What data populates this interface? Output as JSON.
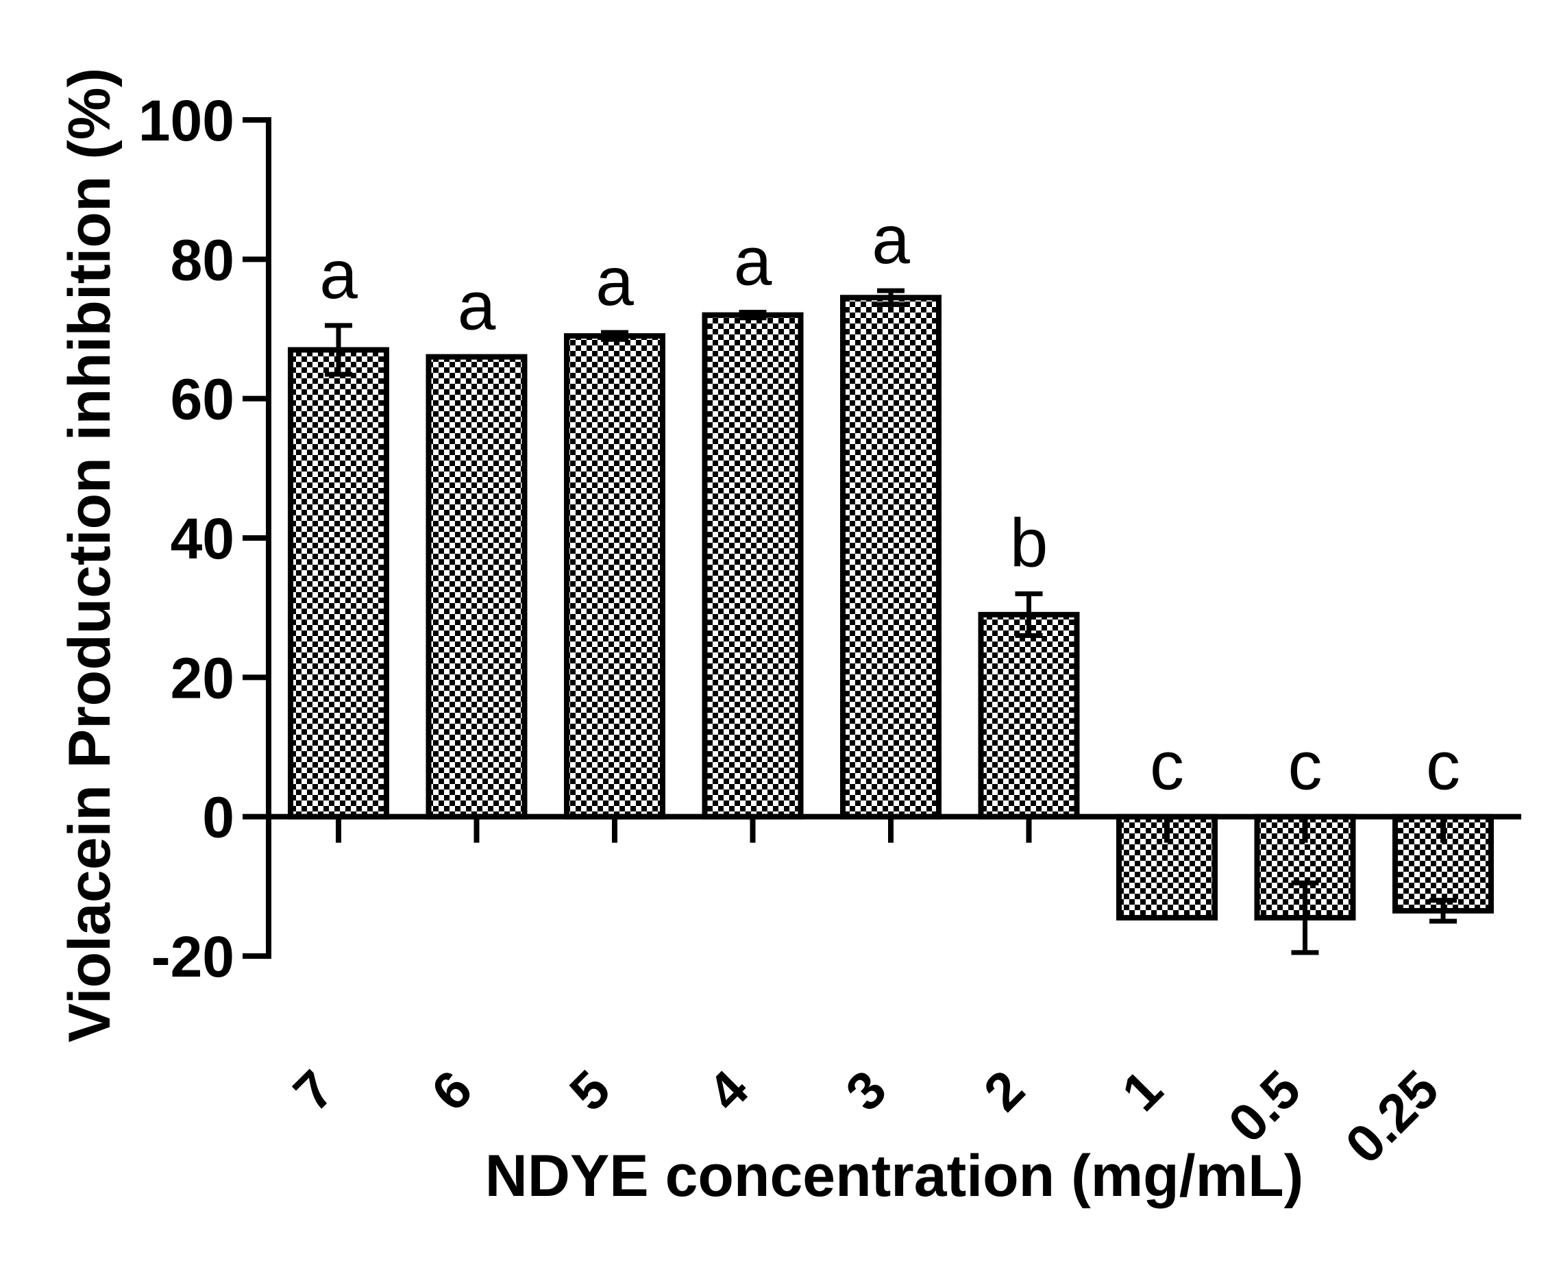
{
  "chart_data": {
    "type": "bar",
    "xlabel": "NDYE concentration (mg/mL)",
    "ylabel": "Violacein Production inhibition (%)",
    "ylim": [
      -20,
      100
    ],
    "yticks": [
      -20,
      0,
      20,
      40,
      60,
      80,
      100
    ],
    "grid": false,
    "legend": "none",
    "categories": [
      "7",
      "6",
      "5",
      "4",
      "3",
      "2",
      "1",
      "0.5",
      "0.25"
    ],
    "values": [
      67,
      66,
      69,
      72,
      74.5,
      29,
      -14.5,
      -14.5,
      -13.5
    ],
    "errors": [
      3.5,
      0,
      0.5,
      0.4,
      1,
      3,
      0,
      5,
      1.5
    ],
    "significance_letters": [
      "a",
      "a",
      "a",
      "a",
      "a",
      "b",
      "c",
      "c",
      "c"
    ],
    "bar_fill": "checkered",
    "colors": {
      "bar_dark": "#000000",
      "bar_light": "#ffffff"
    }
  }
}
